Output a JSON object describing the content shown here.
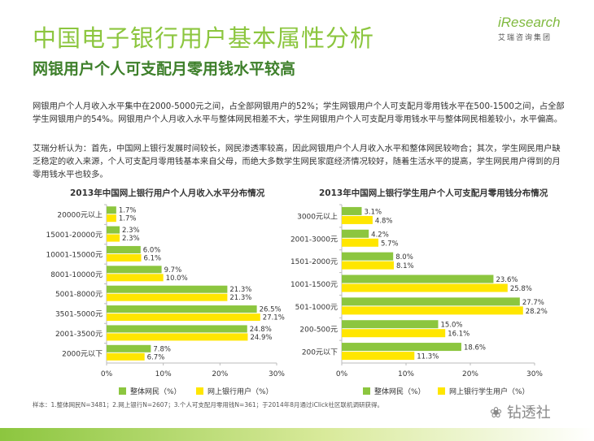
{
  "header": {
    "title": "中国电子银行用户基本属性分析",
    "subtitle": "网银用户个人可支配月零用钱水平较高",
    "logo_main": "iResearch",
    "logo_sub": "艾瑞咨询集团"
  },
  "text": {
    "paragraph1": "网银用户个人月收入水平集中在2000-5000元之间，占全部网银用户的52%；学生网银用户个人可支配月零用钱水平在500-1500之间，占全部学生网银用户的54%。网银用户个人月收入水平与整体网民相差不大，学生网银用户个人可支配月零用钱水平与整体网民相差较小，水平偏高。",
    "paragraph2": "艾瑞分析认为：首先，中国网上银行发展时间较长，网民渗透率较高，因此网银用户个人月收入水平和整体网民较吻合；其次，学生网民用户缺乏稳定的收入来源，个人可支配月零用钱基本来自父母，而绝大多数学生网民家庭经济情况较好，随着生活水平的提高，学生网民用户得到的月零用钱水平也较多。"
  },
  "colors": {
    "series1": "#8cc63f",
    "series2": "#ffe600",
    "axis": "#bbbbbb",
    "brand": "#8cc63f"
  },
  "chart_data": [
    {
      "type": "bar",
      "orientation": "horizontal",
      "title": "2013年中国网上银行用户个人月收入水平分布情况",
      "categories": [
        "20000元以上",
        "15001-20000元",
        "10001-15000元",
        "8001-10000元",
        "5001-8000元",
        "3501-5000元",
        "2001-3500元",
        "2000元以下"
      ],
      "series": [
        {
          "name": "整体网民（%）",
          "values": [
            1.7,
            2.3,
            6.0,
            9.7,
            21.3,
            26.5,
            24.8,
            7.8
          ]
        },
        {
          "name": "网上银行用户（%）",
          "values": [
            1.7,
            2.3,
            6.1,
            10.0,
            21.3,
            27.1,
            24.9,
            6.7
          ]
        }
      ],
      "value_labels": [
        [
          "1.7%",
          "2.3%",
          "6.0%",
          "9.7%",
          "21.3%",
          "26.5%",
          "24.8%",
          "7.8%"
        ],
        [
          "1.7%",
          "2.3%",
          "6.1%",
          "10.0%",
          "21.3%",
          "27.1%",
          "24.9%",
          "6.7%"
        ]
      ],
      "xlim": [
        0,
        30
      ],
      "xticks": [
        "0%",
        "10%",
        "20%",
        "30%"
      ],
      "legend": "bottom"
    },
    {
      "type": "bar",
      "orientation": "horizontal",
      "title": "2013年中国网上银行学生用户个人可支配月零用钱分布情况",
      "categories": [
        "3000元以上",
        "2001-3000元",
        "1501-2000元",
        "1001-1500元",
        "501-1000元",
        "200-500元",
        "200元以下"
      ],
      "series": [
        {
          "name": "整体网民（%）",
          "values": [
            3.1,
            4.2,
            8.0,
            23.6,
            27.7,
            15.0,
            18.6
          ]
        },
        {
          "name": "网上银行学生用户（%）",
          "values": [
            4.8,
            5.7,
            8.1,
            25.8,
            28.2,
            16.1,
            11.3
          ]
        }
      ],
      "value_labels": [
        [
          "3.1%",
          "4.2%",
          "8.0%",
          "23.6%",
          "27.7%",
          "15.0%",
          "18.6%"
        ],
        [
          "4.8%",
          "5.7%",
          "8.1%",
          "25.8%",
          "28.2%",
          "16.1%",
          "11.3%"
        ]
      ],
      "xlim": [
        0,
        30
      ],
      "xticks": [
        "0%",
        "10%",
        "20%",
        "30%"
      ],
      "legend": "bottom"
    }
  ],
  "footer": {
    "note": "样本：1.整体网民N=3481；2.网上银行N=2607；3.个人可支配月零用钱N=361；于2014年8月通过iClick社区联机调研获得。",
    "watermark": "钻透社"
  }
}
